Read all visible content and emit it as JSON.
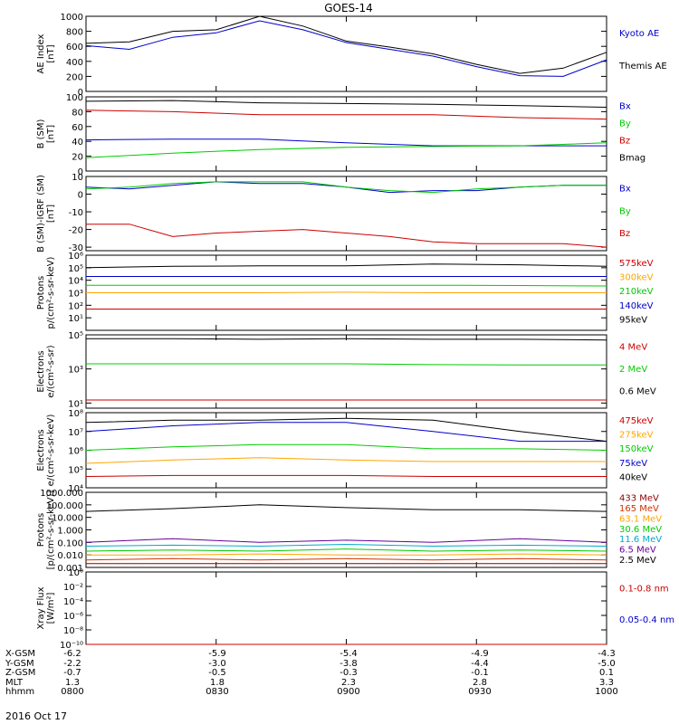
{
  "title": "GOES-14",
  "date_label": "2016 Oct 17",
  "chart_data": [
    {
      "type": "line",
      "ylabel": [
        "AE Index",
        "[nT]"
      ],
      "ylim": [
        0,
        1000
      ],
      "scale": "linear",
      "yticks": [
        "0",
        "200",
        "400",
        "600",
        "800",
        "1000"
      ],
      "ytick_values": [
        0,
        200,
        400,
        600,
        800,
        1000
      ],
      "x": [
        0,
        10,
        20,
        30,
        40,
        50,
        60,
        70,
        80,
        90,
        100,
        110,
        120
      ],
      "series": [
        {
          "name": "Kyoto AE",
          "color": "#0000cc",
          "values": [
            610,
            560,
            720,
            780,
            940,
            820,
            650,
            560,
            470,
            330,
            210,
            200,
            420
          ]
        },
        {
          "name": "Themis AE",
          "color": "#000000",
          "values": [
            640,
            660,
            800,
            820,
            1000,
            870,
            670,
            590,
            500,
            360,
            240,
            310,
            520
          ]
        }
      ],
      "legend": [
        {
          "text": "Kyoto AE",
          "color": "#0000cc"
        },
        {
          "text": "Themis AE",
          "color": "#000000"
        }
      ]
    },
    {
      "type": "line",
      "ylabel": [
        "B (SM)",
        "[nT]"
      ],
      "ylim": [
        0,
        100
      ],
      "scale": "linear",
      "yticks": [
        "0",
        "20",
        "40",
        "60",
        "80",
        "100"
      ],
      "ytick_values": [
        0,
        20,
        40,
        60,
        80,
        100
      ],
      "x": [
        0,
        20,
        40,
        60,
        80,
        100,
        120
      ],
      "series": [
        {
          "name": "Bmag",
          "color": "#000000",
          "values": [
            94,
            95,
            92,
            91,
            90,
            88,
            86
          ]
        },
        {
          "name": "Bx",
          "color": "#0000cc",
          "values": [
            42,
            43,
            43,
            38,
            34,
            34,
            34
          ]
        },
        {
          "name": "By",
          "color": "#00cc00",
          "values": [
            18,
            24,
            29,
            32,
            33,
            34,
            38
          ]
        },
        {
          "name": "Bz",
          "color": "#cc0000",
          "values": [
            82,
            80,
            76,
            76,
            76,
            72,
            70
          ]
        }
      ],
      "legend": [
        {
          "text": "Bx",
          "color": "#0000cc"
        },
        {
          "text": "By",
          "color": "#00cc00"
        },
        {
          "text": "Bz",
          "color": "#cc0000"
        },
        {
          "text": "Bmag",
          "color": "#000000"
        }
      ]
    },
    {
      "type": "line",
      "ylabel": [
        "B (SM)-IGRF (SM)",
        "[nT]"
      ],
      "ylim": [
        -32,
        10
      ],
      "scale": "linear",
      "yticks": [
        "-30",
        "-20",
        "-10",
        "0",
        "10"
      ],
      "ytick_values": [
        -30,
        -20,
        -10,
        0,
        10
      ],
      "x": [
        0,
        10,
        20,
        30,
        40,
        50,
        60,
        70,
        80,
        90,
        100,
        110,
        120
      ],
      "series": [
        {
          "name": "Bx",
          "color": "#0000cc",
          "values": [
            4,
            3,
            5,
            7,
            6,
            6,
            4,
            1,
            2,
            2,
            4,
            5,
            5
          ]
        },
        {
          "name": "By",
          "color": "#00cc00",
          "values": [
            3,
            4,
            6,
            7,
            7,
            7,
            4,
            2,
            1,
            3,
            4,
            5,
            5
          ]
        },
        {
          "name": "Bz",
          "color": "#cc0000",
          "values": [
            -17,
            -17,
            -24,
            -22,
            -21,
            -20,
            -22,
            -24,
            -27,
            -28,
            -28,
            -28,
            -30
          ]
        }
      ],
      "legend": [
        {
          "text": "Bx",
          "color": "#0000cc"
        },
        {
          "text": "By",
          "color": "#00cc00"
        },
        {
          "text": "Bz",
          "color": "#cc0000"
        }
      ]
    },
    {
      "type": "line",
      "ylabel": [
        "Protons",
        "p/(cm²-s-sr-keV)"
      ],
      "ylim": [
        1,
        1000000
      ],
      "scale": "log",
      "yticks": [
        "10¹",
        "10²",
        "10³",
        "10⁴",
        "10⁵",
        "10⁶"
      ],
      "ytick_values": [
        10,
        100,
        1000,
        10000,
        100000,
        1000000
      ],
      "x": [
        0,
        20,
        40,
        60,
        80,
        100,
        120
      ],
      "series": [
        {
          "name": "575keV",
          "color": "#cc0000",
          "values": [
            50,
            50,
            50,
            50,
            50,
            50,
            50
          ]
        },
        {
          "name": "300keV",
          "color": "#ffa500",
          "values": [
            1000,
            1000,
            1000,
            1100,
            1000,
            1000,
            1000
          ]
        },
        {
          "name": "210keV",
          "color": "#00cc00",
          "values": [
            4000,
            4000,
            4000,
            4000,
            4000,
            3800,
            3500
          ]
        },
        {
          "name": "140keV",
          "color": "#0000cc",
          "values": [
            20000,
            20000,
            20000,
            20000,
            20000,
            20000,
            20000
          ]
        },
        {
          "name": "95keV",
          "color": "#000000",
          "values": [
            100000,
            130000,
            140000,
            140000,
            200000,
            170000,
            130000
          ]
        }
      ],
      "legend": [
        {
          "text": "575keV",
          "color": "#cc0000"
        },
        {
          "text": "300keV",
          "color": "#ffa500"
        },
        {
          "text": "210keV",
          "color": "#00cc00"
        },
        {
          "text": "140keV",
          "color": "#0000cc"
        },
        {
          "text": "95keV",
          "color": "#000000"
        }
      ]
    },
    {
      "type": "line",
      "ylabel": [
        "Electrons",
        "e/(cm²-s-sr)"
      ],
      "ylim": [
        5,
        100000
      ],
      "scale": "log",
      "yticks": [
        "10¹",
        "10³",
        "10⁵"
      ],
      "ytick_values": [
        10,
        1000,
        100000
      ],
      "x": [
        0,
        20,
        40,
        60,
        80,
        100,
        120
      ],
      "series": [
        {
          "name": "4 MeV",
          "color": "#cc0000",
          "values": [
            15,
            15,
            15,
            15,
            15,
            15,
            15
          ]
        },
        {
          "name": "2 MeV",
          "color": "#00cc00",
          "values": [
            2000,
            2000,
            2000,
            2000,
            1800,
            1700,
            1700
          ]
        },
        {
          "name": "0.6 MeV",
          "color": "#000000",
          "values": [
            60000,
            60000,
            55000,
            60000,
            55000,
            55000,
            50000
          ]
        }
      ],
      "legend": [
        {
          "text": "4 MeV",
          "color": "#cc0000"
        },
        {
          "text": "2 MeV",
          "color": "#00cc00"
        },
        {
          "text": "0.6 MeV",
          "color": "#000000"
        }
      ]
    },
    {
      "type": "line",
      "ylabel": [
        "Electrons",
        "e/(cm²-s-sr-keV)"
      ],
      "ylim": [
        10000,
        100000000
      ],
      "scale": "log",
      "yticks": [
        "10⁴",
        "10⁵",
        "10⁶",
        "10⁷",
        "10⁸"
      ],
      "ytick_values": [
        10000,
        100000,
        1000000,
        10000000,
        100000000
      ],
      "x": [
        0,
        20,
        40,
        60,
        80,
        100,
        120
      ],
      "series": [
        {
          "name": "475keV",
          "color": "#cc0000",
          "values": [
            40000,
            45000,
            45000,
            45000,
            40000,
            40000,
            40000
          ]
        },
        {
          "name": "275keV",
          "color": "#ffa500",
          "values": [
            200000,
            300000,
            400000,
            300000,
            250000,
            250000,
            250000
          ]
        },
        {
          "name": "150keV",
          "color": "#00cc00",
          "values": [
            1000000,
            1500000,
            2000000,
            2000000,
            1200000,
            1200000,
            1000000
          ]
        },
        {
          "name": "75keV",
          "color": "#0000cc",
          "values": [
            10000000,
            20000000,
            30000000,
            30000000,
            10000000,
            3000000,
            3000000
          ]
        },
        {
          "name": "40keV",
          "color": "#000000",
          "values": [
            30000000,
            40000000,
            40000000,
            50000000,
            40000000,
            10000000,
            3000000
          ]
        }
      ],
      "legend": [
        {
          "text": "475keV",
          "color": "#cc0000"
        },
        {
          "text": "275keV",
          "color": "#ffa500"
        },
        {
          "text": "150keV",
          "color": "#00cc00"
        },
        {
          "text": "75keV",
          "color": "#0000cc"
        },
        {
          "text": "40keV",
          "color": "#000000"
        }
      ]
    },
    {
      "type": "line",
      "ylabel": [
        "Protons",
        "[p/(cm²-s-sr-keV)]"
      ],
      "ylim": [
        0.001,
        1000
      ],
      "scale": "log",
      "yticks": [
        "0.001",
        "0.010",
        "0.100",
        "1.000",
        "10.000",
        "100.000",
        "1000.000"
      ],
      "ytick_values": [
        0.001,
        0.01,
        0.1,
        1,
        10,
        100,
        1000
      ],
      "x": [
        0,
        20,
        40,
        60,
        80,
        100,
        120
      ],
      "series": [
        {
          "name": "433 MeV",
          "color": "#8b0000",
          "values": [
            0.002,
            0.002,
            0.002,
            0.002,
            0.002,
            0.002,
            0.002
          ]
        },
        {
          "name": "165 MeV",
          "color": "#cc3300",
          "values": [
            0.004,
            0.005,
            0.004,
            0.005,
            0.004,
            0.005,
            0.004
          ]
        },
        {
          "name": "63.1 MeV",
          "color": "#ffa500",
          "values": [
            0.01,
            0.01,
            0.012,
            0.01,
            0.01,
            0.012,
            0.01
          ]
        },
        {
          "name": "30.6 MeV",
          "color": "#00cc00",
          "values": [
            0.02,
            0.025,
            0.02,
            0.03,
            0.02,
            0.025,
            0.02
          ]
        },
        {
          "name": "11.6 MeV",
          "color": "#00aacc",
          "values": [
            0.05,
            0.06,
            0.05,
            0.07,
            0.05,
            0.06,
            0.05
          ]
        },
        {
          "name": "6.5 MeV",
          "color": "#660099",
          "values": [
            0.1,
            0.2,
            0.1,
            0.15,
            0.1,
            0.2,
            0.1
          ]
        },
        {
          "name": "2.5 MeV",
          "color": "#000000",
          "values": [
            30,
            50,
            100,
            60,
            40,
            40,
            30
          ]
        }
      ],
      "legend": [
        {
          "text": "433 MeV",
          "color": "#8b0000"
        },
        {
          "text": "165 MeV",
          "color": "#cc3300"
        },
        {
          "text": "63.1 MeV",
          "color": "#ffa500"
        },
        {
          "text": "30.6 MeV",
          "color": "#00cc00"
        },
        {
          "text": "11.6 MeV",
          "color": "#00aacc"
        },
        {
          "text": "6.5 MeV",
          "color": "#660099"
        },
        {
          "text": "2.5 MeV",
          "color": "#000000"
        }
      ]
    },
    {
      "type": "line",
      "ylabel": [
        "Xray Flux",
        "[W/m²]"
      ],
      "ylim": [
        1e-10,
        1
      ],
      "scale": "log",
      "yticks": [
        "10⁻¹⁰",
        "10⁻⁸",
        "10⁻⁶",
        "10⁻⁴",
        "10⁻²",
        "10⁰"
      ],
      "ytick_values": [
        1e-10,
        1e-08,
        1e-06,
        0.0001,
        0.01,
        1
      ],
      "x": [
        0,
        120
      ],
      "series": [
        {
          "name": "0.1-0.8 nm",
          "color": "#cc0000",
          "values": [
            1e-10,
            1e-10
          ]
        }
      ],
      "legend": [
        {
          "text": "0.1-0.8 nm",
          "color": "#cc0000"
        },
        {
          "text": "0.05-0.4 nm",
          "color": "#0000cc"
        }
      ]
    }
  ],
  "x_axis": {
    "rows": [
      {
        "label": "X-GSM",
        "values": [
          "-6.2",
          "-5.9",
          "-5.4",
          "-4.9",
          "-4.3"
        ]
      },
      {
        "label": "Y-GSM",
        "values": [
          "-2.2",
          "-3.0",
          "-3.8",
          "-4.4",
          "-5.0"
        ]
      },
      {
        "label": "Z-GSM",
        "values": [
          "-0.7",
          "-0.5",
          "-0.3",
          "-0.1",
          "0.1"
        ]
      },
      {
        "label": "MLT",
        "values": [
          "1.3",
          "1.8",
          "2.3",
          "2.8",
          "3.3"
        ]
      },
      {
        "label": "hhmm",
        "values": [
          "0800",
          "0830",
          "0900",
          "0930",
          "1000"
        ]
      }
    ]
  }
}
